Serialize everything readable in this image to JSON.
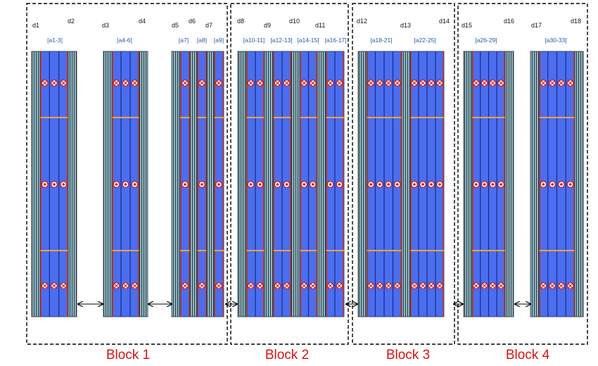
{
  "blocks": [
    {
      "label": "Block 1"
    },
    {
      "label": "Block 2"
    },
    {
      "label": "Block 3"
    },
    {
      "label": "Block 4"
    }
  ],
  "d_labels": [
    "d1",
    "d2",
    "d3",
    "d4",
    "d5",
    "d6",
    "d7",
    "d8",
    "d9",
    "d10",
    "d11",
    "d12",
    "d13",
    "d14",
    "d15",
    "d16",
    "d17",
    "d18"
  ],
  "a_labels": [
    "[a1-3]",
    "[a4-6]",
    "[a7]",
    "[a8]",
    "[a9]",
    "[a10-11]",
    "[a12-13]",
    "[a14-15]",
    "[a16-17]",
    "[a18-21]",
    "[a22-25]",
    "[a26-29]",
    "[a30-33]"
  ],
  "colors": {
    "channel_fill": "#4b6ef0",
    "rib_red": "#d03a20",
    "rib_orange": "#f0a040",
    "hatch_wall": "#7aa6b4",
    "block_border": "#000000",
    "block_label": "#dd1111",
    "a_label": "#2255aa"
  },
  "icons": {
    "marker_cross": "circled-x-marker-icon",
    "marker_dot": "circled-dot-marker-icon",
    "double_arrow": "double-arrow-icon"
  }
}
